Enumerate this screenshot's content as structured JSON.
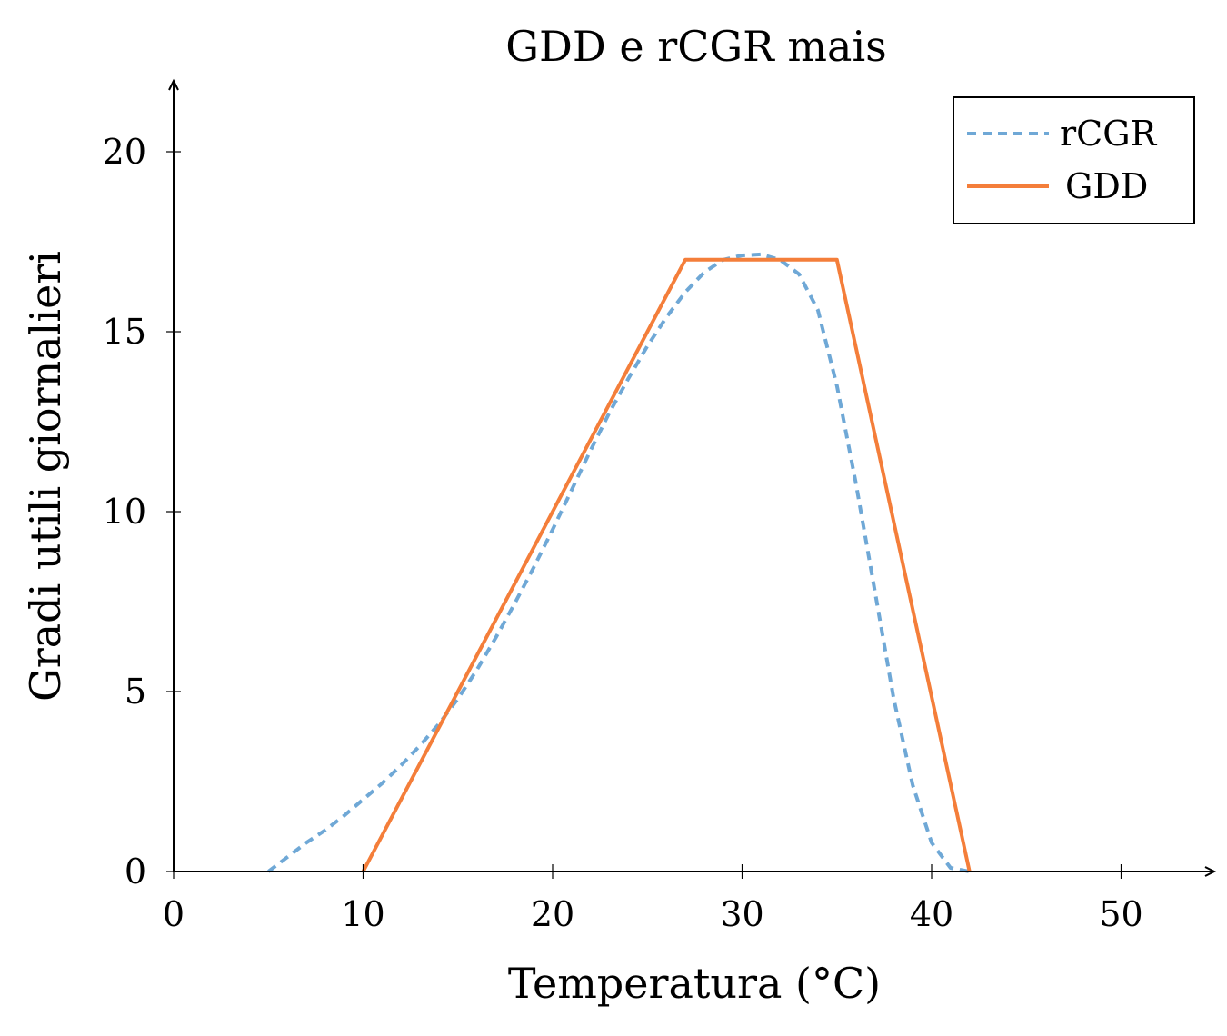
{
  "chart_data": {
    "type": "line",
    "title": "GDD e rCGR mais",
    "xlabel": "Temperatura (°C)",
    "ylabel": "Gradi utili giornalieri",
    "xlim": [
      0,
      55
    ],
    "ylim": [
      0,
      22
    ],
    "x_ticks": [
      0,
      10,
      20,
      30,
      40,
      50
    ],
    "x_tick_labels": [
      "0",
      "10",
      "20",
      "30",
      "40",
      "50"
    ],
    "y_ticks": [
      0,
      5,
      10,
      15,
      20
    ],
    "y_tick_labels": [
      "0",
      "5",
      "10",
      "15",
      "20"
    ],
    "legend_position": "top-right",
    "series": [
      {
        "name": "rCGR",
        "color": "#6fa8d6",
        "style": "dashed",
        "x": [
          5,
          6,
          7,
          8,
          9,
          10,
          11,
          12,
          13,
          14,
          15,
          16,
          17,
          18,
          19,
          20,
          21,
          22,
          23,
          24,
          25,
          26,
          27,
          28,
          29,
          30,
          31,
          32,
          33,
          34,
          35,
          36,
          37,
          38,
          39,
          40,
          41,
          42
        ],
        "y": [
          0,
          0.4,
          0.8,
          1.15,
          1.55,
          2.0,
          2.45,
          2.95,
          3.5,
          4.1,
          4.8,
          5.6,
          6.5,
          7.45,
          8.45,
          9.5,
          10.6,
          11.7,
          12.75,
          13.7,
          14.6,
          15.4,
          16.1,
          16.65,
          17.0,
          17.12,
          17.15,
          17.0,
          16.6,
          15.6,
          13.5,
          10.8,
          7.8,
          4.8,
          2.4,
          0.8,
          0.1,
          0
        ]
      },
      {
        "name": "GDD",
        "color": "#f47e3a",
        "style": "solid",
        "x": [
          10,
          27,
          35,
          42
        ],
        "y": [
          0,
          17,
          17,
          0
        ]
      }
    ]
  }
}
